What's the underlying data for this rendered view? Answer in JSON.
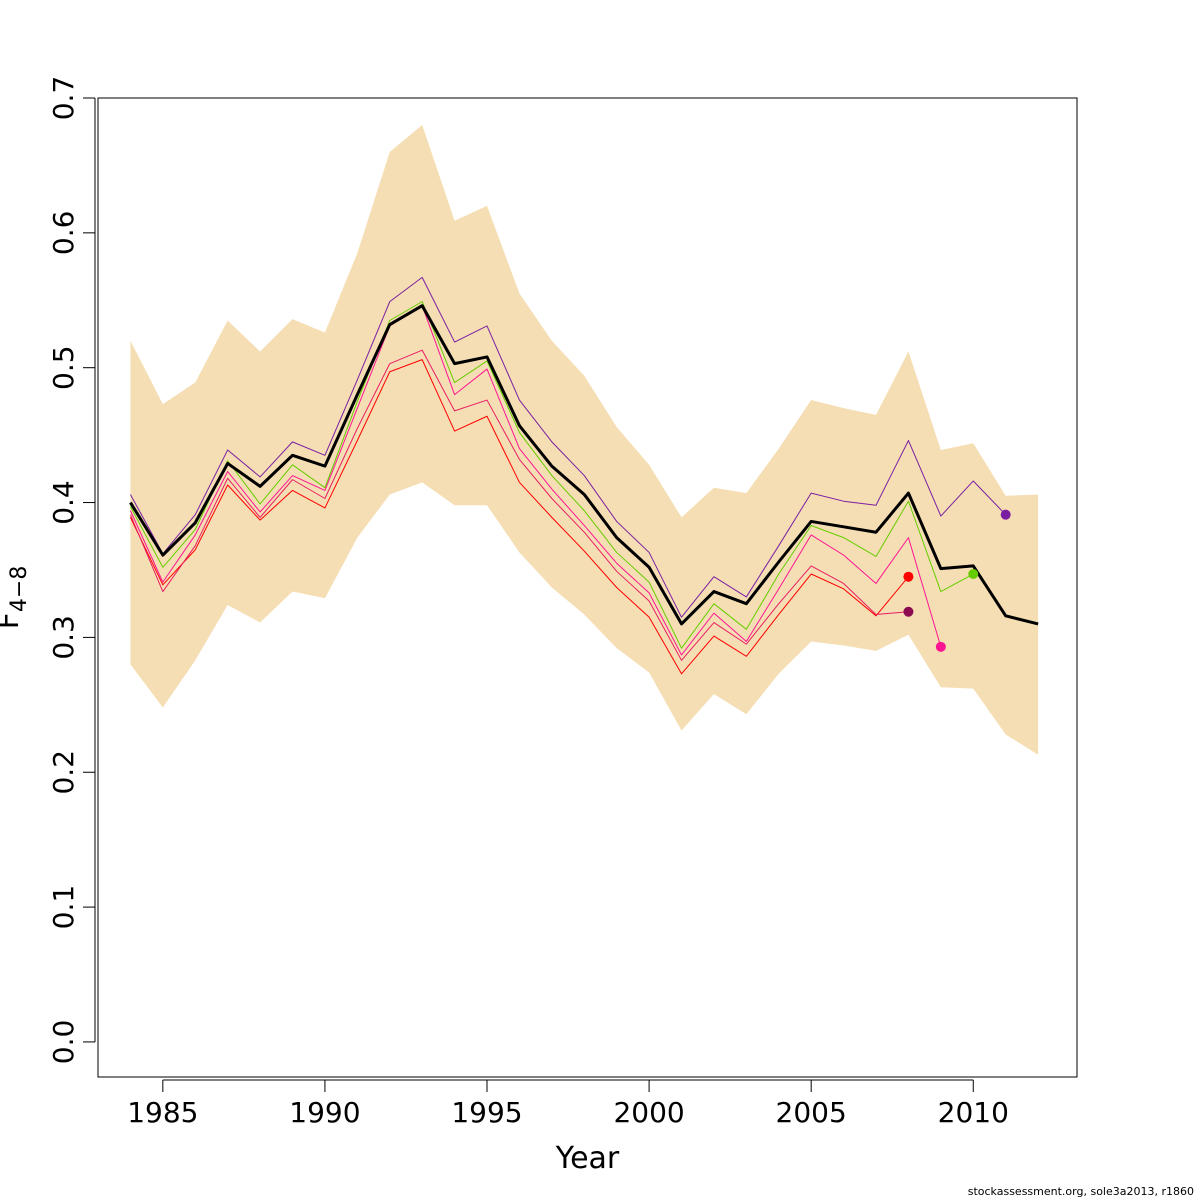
{
  "chart_data": {
    "type": "line",
    "title": "",
    "xlabel": "Year",
    "ylabel_main": "F",
    "ylabel_sub": "4−8",
    "xlim": [
      1983.0,
      2013.2
    ],
    "ylim": [
      -0.026,
      0.7
    ],
    "x_ticks": [
      1985,
      1990,
      1995,
      2000,
      2005,
      2010
    ],
    "y_ticks": [
      0.0,
      0.1,
      0.2,
      0.3,
      0.4,
      0.5,
      0.6,
      0.7
    ],
    "y_tick_labels": [
      "0.0",
      "0.1",
      "0.2",
      "0.3",
      "0.4",
      "0.5",
      "0.6",
      "0.7"
    ],
    "band": {
      "color": "#F5DEB3",
      "years": [
        1984,
        1985,
        1986,
        1987,
        1988,
        1989,
        1990,
        1991,
        1992,
        1993,
        1994,
        1995,
        1996,
        1997,
        1998,
        1999,
        2000,
        2001,
        2002,
        2003,
        2004,
        2005,
        2006,
        2007,
        2008,
        2009,
        2010,
        2011,
        2012
      ],
      "upper": [
        0.52,
        0.473,
        0.489,
        0.535,
        0.512,
        0.536,
        0.526,
        0.585,
        0.66,
        0.68,
        0.609,
        0.62,
        0.555,
        0.52,
        0.494,
        0.456,
        0.428,
        0.389,
        0.411,
        0.407,
        0.44,
        0.476,
        0.47,
        0.465,
        0.512,
        0.439,
        0.444,
        0.405,
        0.406
      ],
      "lower": [
        0.28,
        0.248,
        0.283,
        0.324,
        0.311,
        0.334,
        0.329,
        0.374,
        0.406,
        0.415,
        0.398,
        0.398,
        0.363,
        0.337,
        0.317,
        0.292,
        0.274,
        0.231,
        0.258,
        0.243,
        0.273,
        0.297,
        0.294,
        0.29,
        0.302,
        0.263,
        0.262,
        0.228,
        0.213
      ]
    },
    "series": [
      {
        "color": "#000000",
        "width": 3,
        "years": [
          1984,
          1985,
          1986,
          1987,
          1988,
          1989,
          1990,
          1991,
          1992,
          1993,
          1994,
          1995,
          1996,
          1997,
          1998,
          1999,
          2000,
          2001,
          2002,
          2003,
          2004,
          2005,
          2006,
          2007,
          2008,
          2009,
          2010,
          2011,
          2012
        ],
        "values": [
          0.4,
          0.361,
          0.385,
          0.429,
          0.412,
          0.435,
          0.427,
          0.48,
          0.532,
          0.546,
          0.503,
          0.508,
          0.457,
          0.427,
          0.406,
          0.374,
          0.352,
          0.31,
          0.334,
          0.325,
          0.356,
          0.386,
          0.382,
          0.378,
          0.407,
          0.351,
          0.353,
          0.316,
          0.31
        ]
      },
      {
        "color": "#7B1FA2",
        "width": 1,
        "years": [
          1984,
          1985,
          1986,
          1987,
          1988,
          1989,
          1990,
          1991,
          1992,
          1993,
          1994,
          1995,
          1996,
          1997,
          1998,
          1999,
          2000,
          2001,
          2002,
          2003,
          2004,
          2005,
          2006,
          2007,
          2008,
          2009,
          2010,
          2011
        ],
        "values": [
          0.406,
          0.362,
          0.391,
          0.439,
          0.419,
          0.445,
          0.435,
          0.491,
          0.549,
          0.567,
          0.519,
          0.531,
          0.476,
          0.445,
          0.42,
          0.386,
          0.363,
          0.315,
          0.345,
          0.33,
          0.368,
          0.407,
          0.401,
          0.398,
          0.446,
          0.39,
          0.416,
          0.391
        ],
        "end_marker": {
          "year": 2011,
          "value": 0.391
        }
      },
      {
        "color": "#66CC00",
        "width": 1,
        "years": [
          1984,
          1985,
          1986,
          1987,
          1988,
          1989,
          1990,
          1991,
          1992,
          1993,
          1994,
          1995,
          1996,
          1997,
          1998,
          1999,
          2000,
          2001,
          2002,
          2003,
          2004,
          2005,
          2006,
          2007,
          2008,
          2009,
          2010
        ],
        "values": [
          0.397,
          0.352,
          0.38,
          0.431,
          0.399,
          0.428,
          0.411,
          0.475,
          0.535,
          0.549,
          0.489,
          0.505,
          0.452,
          0.42,
          0.394,
          0.363,
          0.341,
          0.292,
          0.325,
          0.306,
          0.347,
          0.383,
          0.374,
          0.36,
          0.401,
          0.334,
          0.347
        ],
        "end_marker": {
          "year": 2010,
          "value": 0.347
        }
      },
      {
        "color": "#FF1493",
        "width": 1,
        "years": [
          1984,
          1985,
          1986,
          1987,
          1988,
          1989,
          1990,
          1991,
          1992,
          1993,
          1994,
          1995,
          1996,
          1997,
          1998,
          1999,
          2000,
          2001,
          2002,
          2003,
          2004,
          2005,
          2006,
          2007,
          2008,
          2009
        ],
        "values": [
          0.394,
          0.341,
          0.376,
          0.423,
          0.393,
          0.42,
          0.409,
          0.47,
          0.531,
          0.546,
          0.48,
          0.499,
          0.44,
          0.41,
          0.383,
          0.355,
          0.333,
          0.287,
          0.318,
          0.297,
          0.336,
          0.376,
          0.361,
          0.34,
          0.374,
          0.293
        ],
        "end_marker": {
          "year": 2009,
          "value": 0.293
        }
      },
      {
        "color": "#E91E63",
        "width": 1,
        "years": [
          1984,
          1985,
          1986,
          1987,
          1988,
          1989,
          1990,
          1991,
          1992,
          1993,
          1994,
          1995,
          1996,
          1997,
          1998,
          1999,
          2000,
          2001,
          2002,
          2003,
          2004,
          2005,
          2006,
          2007,
          2008
        ],
        "values": [
          0.391,
          0.334,
          0.368,
          0.418,
          0.389,
          0.417,
          0.403,
          0.455,
          0.503,
          0.513,
          0.468,
          0.476,
          0.432,
          0.403,
          0.378,
          0.349,
          0.327,
          0.283,
          0.311,
          0.295,
          0.325,
          0.353,
          0.34,
          0.317,
          0.319
        ],
        "end_marker": {
          "year": 2008,
          "value": 0.319,
          "color": "#8B0A50"
        }
      },
      {
        "color": "#FF0000",
        "width": 1,
        "years": [
          1984,
          1985,
          1986,
          1987,
          1988,
          1989,
          1990,
          1991,
          1992,
          1993,
          1994,
          1995,
          1996,
          1997,
          1998,
          1999,
          2000,
          2001,
          2002,
          2003,
          2004,
          2005,
          2006,
          2007,
          2008
        ],
        "values": [
          0.389,
          0.339,
          0.365,
          0.413,
          0.387,
          0.409,
          0.396,
          0.446,
          0.497,
          0.506,
          0.453,
          0.464,
          0.415,
          0.389,
          0.364,
          0.337,
          0.315,
          0.273,
          0.301,
          0.286,
          0.317,
          0.347,
          0.336,
          0.316,
          0.345
        ],
        "end_marker": {
          "year": 2008,
          "value": 0.345
        }
      }
    ]
  },
  "credit": "stockassessment.org, sole3a2013, r1860"
}
